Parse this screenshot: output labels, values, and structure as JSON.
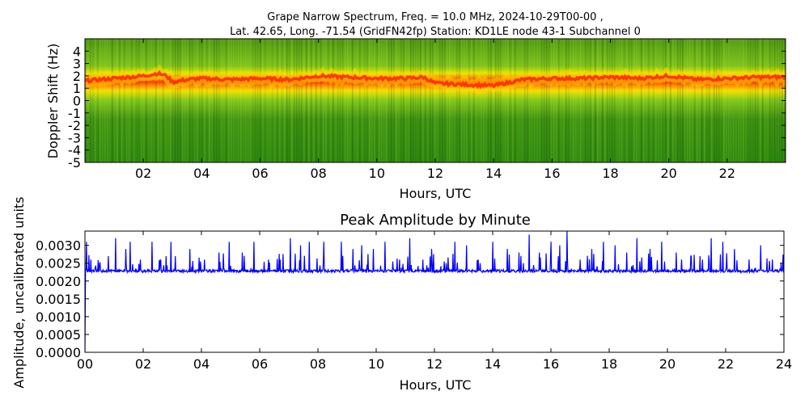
{
  "chart_data": [
    {
      "type": "heatmap",
      "title_line1": "Grape Narrow Spectrum, Freq. = 10.0 MHz, 2024-10-29T00-00 ,",
      "title_line2": "Lat.  42.65, Long. -71.54 (GridFN42fp) Station: KD1LE node 43-1 Subchannel 0",
      "xlabel": "Hours, UTC",
      "ylabel": "Doppler Shift (Hz)",
      "xlim": [
        0,
        24
      ],
      "ylim": [
        -5,
        5
      ],
      "xtick_values": [
        2,
        4,
        6,
        8,
        10,
        12,
        14,
        16,
        18,
        20,
        22
      ],
      "xtick_labels": [
        "02",
        "04",
        "06",
        "08",
        "10",
        "12",
        "14",
        "16",
        "18",
        "20",
        "22"
      ],
      "ytick_values": [
        4,
        3,
        2,
        1,
        0,
        -1,
        -2,
        -3,
        -4,
        -5
      ],
      "ytick_labels": [
        "4",
        "3",
        "2",
        "1",
        "0",
        "-1",
        "-2",
        "-3",
        "-4",
        "-5"
      ],
      "colors": {
        "background": "#2f8a12",
        "high": "#ff2a00",
        "mid": "#ffd600",
        "low": "#7bc41a"
      },
      "trace": {
        "hours": [
          0,
          1,
          2,
          2.5,
          2.8,
          3,
          3.5,
          4,
          5,
          6,
          7,
          8,
          9,
          10,
          11,
          11.6,
          12,
          13,
          14,
          14.4,
          15,
          16,
          17,
          18,
          19,
          20,
          21,
          22,
          23,
          24
        ],
        "doppler_hz": [
          1.6,
          1.8,
          2.0,
          2.2,
          2.0,
          1.5,
          1.7,
          1.8,
          1.7,
          1.8,
          1.7,
          2.0,
          1.9,
          1.8,
          1.8,
          1.9,
          1.4,
          1.3,
          1.2,
          1.4,
          1.7,
          1.8,
          1.8,
          1.9,
          1.8,
          2.0,
          1.7,
          1.8,
          1.9,
          1.9
        ]
      }
    },
    {
      "type": "line",
      "title": "Peak Amplitude by Minute",
      "xlabel": "Hours, UTC",
      "ylabel": "Amplitude, uncalibrated units",
      "xlim": [
        0,
        24
      ],
      "ylim": [
        0,
        0.0034
      ],
      "xtick_values": [
        0,
        2,
        4,
        6,
        8,
        10,
        12,
        14,
        16,
        18,
        20,
        22,
        24
      ],
      "xtick_labels": [
        "00",
        "02",
        "04",
        "06",
        "08",
        "10",
        "12",
        "14",
        "16",
        "18",
        "20",
        "22",
        "24"
      ],
      "ytick_values": [
        0,
        0.0005,
        0.001,
        0.0015,
        0.002,
        0.0025,
        0.003
      ],
      "ytick_labels": [
        "0.0000",
        "0.0005",
        "0.0010",
        "0.0015",
        "0.0020",
        "0.0025",
        "0.0030"
      ],
      "line_color": "#0000ff",
      "baseline": 0.00228,
      "start_value": 0.0,
      "spikes": [
        {
          "x": 0.05,
          "y": 0.0031
        },
        {
          "x": 0.2,
          "y": 0.0026
        },
        {
          "x": 0.5,
          "y": 0.0025
        },
        {
          "x": 0.8,
          "y": 0.0027
        },
        {
          "x": 1.05,
          "y": 0.0032
        },
        {
          "x": 1.4,
          "y": 0.0029
        },
        {
          "x": 1.55,
          "y": 0.0031
        },
        {
          "x": 1.9,
          "y": 0.0026
        },
        {
          "x": 2.3,
          "y": 0.0031
        },
        {
          "x": 2.6,
          "y": 0.0026
        },
        {
          "x": 2.95,
          "y": 0.0031
        },
        {
          "x": 3.1,
          "y": 0.0027
        },
        {
          "x": 3.6,
          "y": 0.0029
        },
        {
          "x": 4.1,
          "y": 0.0026
        },
        {
          "x": 4.6,
          "y": 0.0028
        },
        {
          "x": 4.95,
          "y": 0.0031
        },
        {
          "x": 5.4,
          "y": 0.0028
        },
        {
          "x": 5.8,
          "y": 0.0031
        },
        {
          "x": 6.3,
          "y": 0.0026
        },
        {
          "x": 6.7,
          "y": 0.0026
        },
        {
          "x": 7.05,
          "y": 0.0032
        },
        {
          "x": 7.4,
          "y": 0.003
        },
        {
          "x": 7.7,
          "y": 0.0031
        },
        {
          "x": 8.2,
          "y": 0.0031
        },
        {
          "x": 8.8,
          "y": 0.0031
        },
        {
          "x": 9.2,
          "y": 0.0029
        },
        {
          "x": 9.5,
          "y": 0.003
        },
        {
          "x": 9.9,
          "y": 0.0029
        },
        {
          "x": 10.3,
          "y": 0.0031
        },
        {
          "x": 10.8,
          "y": 0.0026
        },
        {
          "x": 11.15,
          "y": 0.0032
        },
        {
          "x": 11.6,
          "y": 0.0026
        },
        {
          "x": 11.9,
          "y": 0.0029
        },
        {
          "x": 12.4,
          "y": 0.0025
        },
        {
          "x": 12.7,
          "y": 0.0031
        },
        {
          "x": 13.1,
          "y": 0.003
        },
        {
          "x": 13.5,
          "y": 0.0026
        },
        {
          "x": 14.0,
          "y": 0.0031
        },
        {
          "x": 14.5,
          "y": 0.0029
        },
        {
          "x": 14.9,
          "y": 0.0028
        },
        {
          "x": 15.25,
          "y": 0.0033
        },
        {
          "x": 15.6,
          "y": 0.0028
        },
        {
          "x": 16.0,
          "y": 0.0031
        },
        {
          "x": 16.3,
          "y": 0.003
        },
        {
          "x": 16.55,
          "y": 0.0034
        },
        {
          "x": 17.0,
          "y": 0.0026
        },
        {
          "x": 17.4,
          "y": 0.0029
        },
        {
          "x": 17.8,
          "y": 0.0031
        },
        {
          "x": 18.2,
          "y": 0.003
        },
        {
          "x": 18.6,
          "y": 0.0028
        },
        {
          "x": 18.95,
          "y": 0.0032
        },
        {
          "x": 19.4,
          "y": 0.0029
        },
        {
          "x": 19.8,
          "y": 0.0031
        },
        {
          "x": 20.3,
          "y": 0.0028
        },
        {
          "x": 20.8,
          "y": 0.0027
        },
        {
          "x": 21.2,
          "y": 0.0026
        },
        {
          "x": 21.5,
          "y": 0.0032
        },
        {
          "x": 21.9,
          "y": 0.0031
        },
        {
          "x": 22.3,
          "y": 0.0029
        },
        {
          "x": 22.8,
          "y": 0.0026
        },
        {
          "x": 23.2,
          "y": 0.003
        },
        {
          "x": 23.6,
          "y": 0.0026
        },
        {
          "x": 23.9,
          "y": 0.0025
        }
      ]
    }
  ]
}
